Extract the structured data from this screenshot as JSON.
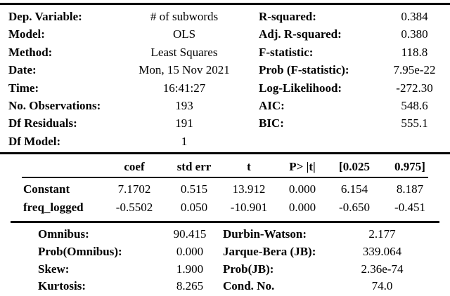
{
  "colors": {
    "text": "#000000",
    "background": "#ffffff",
    "rule": "#000000"
  },
  "model_summary": {
    "left": [
      {
        "label": "Dep. Variable:",
        "value": "# of subwords"
      },
      {
        "label": "Model:",
        "value": "OLS"
      },
      {
        "label": "Method:",
        "value": "Least Squares"
      },
      {
        "label": "Date:",
        "value": "Mon, 15 Nov 2021"
      },
      {
        "label": "Time:",
        "value": "16:41:27"
      },
      {
        "label": "No. Observations:",
        "value": "193"
      },
      {
        "label": "Df Residuals:",
        "value": "191"
      },
      {
        "label": "Df Model:",
        "value": "1"
      }
    ],
    "right": [
      {
        "label": "R-squared:",
        "value": "0.384"
      },
      {
        "label": "Adj. R-squared:",
        "value": "0.380"
      },
      {
        "label": "F-statistic:",
        "value": "118.8"
      },
      {
        "label": "Prob (F-statistic):",
        "value": "7.95e-22"
      },
      {
        "label": "Log-Likelihood:",
        "value": "-272.30"
      },
      {
        "label": "AIC:",
        "value": "548.6"
      },
      {
        "label": "BIC:",
        "value": "555.1"
      }
    ]
  },
  "coefficients": {
    "headers": {
      "coef": "coef",
      "std_err": "std err",
      "t": "t",
      "p": "P> |t|",
      "ci_low": "[0.025",
      "ci_high": "0.975]"
    },
    "rows": [
      {
        "name": "Constant",
        "coef": "7.1702",
        "std_err": "0.515",
        "t": "13.912",
        "p": "0.000",
        "ci_low": "6.154",
        "ci_high": "8.187"
      },
      {
        "name": "freq_logged",
        "coef": "-0.5502",
        "std_err": "0.050",
        "t": "-10.901",
        "p": "0.000",
        "ci_low": "-0.650",
        "ci_high": "-0.451"
      }
    ]
  },
  "diagnostics": {
    "left": [
      {
        "label": "Omnibus:",
        "value": "90.415"
      },
      {
        "label": "Prob(Omnibus):",
        "value": "0.000"
      },
      {
        "label": "Skew:",
        "value": "1.900"
      },
      {
        "label": "Kurtosis:",
        "value": "8.265"
      }
    ],
    "right": [
      {
        "label": "Durbin-Watson:",
        "value": "2.177"
      },
      {
        "label": "Jarque-Bera (JB):",
        "value": "339.064"
      },
      {
        "label": "Prob(JB):",
        "value": "2.36e-74"
      },
      {
        "label": "Cond. No.",
        "value": "74.0"
      }
    ]
  }
}
